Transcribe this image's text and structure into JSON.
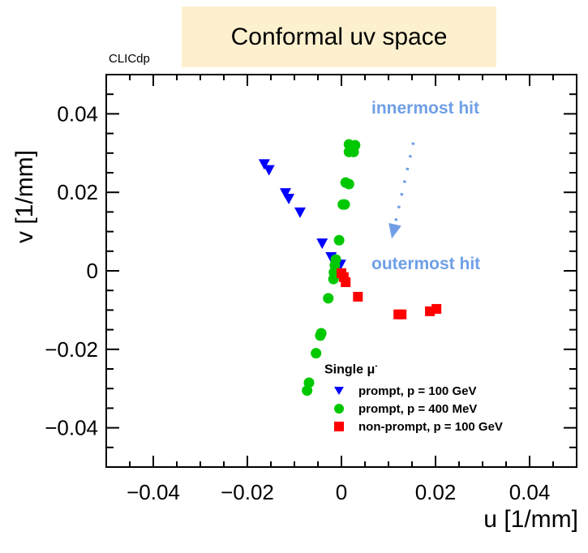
{
  "title": "Conformal uv space",
  "collaboration_label": "CLICdp",
  "annotations": {
    "innermost": "innermost hit",
    "outermost": "outermost hit",
    "color": "#6f9fe6"
  },
  "legend": {
    "header": "Single μ",
    "header_sup": "-",
    "entries": [
      {
        "label": "prompt, p = 100 GeV",
        "marker": "triangle-down",
        "color": "#0000ff"
      },
      {
        "label": "prompt, p = 400 MeV",
        "marker": "circle",
        "color": "#00c800"
      },
      {
        "label": "non-prompt, p = 100 GeV",
        "marker": "square",
        "color": "#ff0000"
      }
    ]
  },
  "chart_data": {
    "type": "scatter",
    "title": "Conformal uv space",
    "xlabel": "u [1/mm]",
    "ylabel": "v [1/mm]",
    "xlim": [
      -0.05,
      0.05
    ],
    "ylim": [
      -0.05,
      0.05
    ],
    "xticks": [
      -0.04,
      -0.02,
      0,
      0.02,
      0.04
    ],
    "xtick_labels": [
      "−0.04",
      "−0.02",
      "0",
      "0.02",
      "0.04"
    ],
    "yticks": [
      -0.04,
      -0.02,
      0,
      0.02,
      0.04
    ],
    "ytick_labels": [
      "−0.04",
      "−0.02",
      "0",
      "0.02",
      "0.04"
    ],
    "minor_tick_step": 0.005,
    "grid": false,
    "legend_position": "bottom-right",
    "series": [
      {
        "name": "prompt, p = 100 GeV",
        "marker": "triangle-down",
        "color": "#0000ff",
        "points": [
          [
            -0.0164,
            0.0272
          ],
          [
            -0.0154,
            0.0257
          ],
          [
            -0.0119,
            0.0198
          ],
          [
            -0.0112,
            0.0184
          ],
          [
            -0.0088,
            0.0149
          ],
          [
            -0.0041,
            0.007
          ],
          [
            -0.0022,
            0.0035
          ],
          [
            -0.0002,
            0.0016
          ]
        ]
      },
      {
        "name": "prompt, p = 400 MeV",
        "marker": "circle",
        "color": "#00c800",
        "points": [
          [
            0.0016,
            0.0322
          ],
          [
            0.0029,
            0.032
          ],
          [
            0.0016,
            0.0303
          ],
          [
            0.0026,
            0.0303
          ],
          [
            0.0009,
            0.0225
          ],
          [
            0.0016,
            0.0221
          ],
          [
            0.0007,
            0.0169
          ],
          [
            0.0003,
            0.0169
          ],
          [
            -0.0005,
            0.0078
          ],
          [
            -0.0012,
            0.0029
          ],
          [
            -0.0014,
            0.0014
          ],
          [
            -0.0016,
            -0.0004
          ],
          [
            -0.0017,
            -0.0021
          ],
          [
            -0.0028,
            -0.007
          ],
          [
            -0.0043,
            -0.0159
          ],
          [
            -0.0045,
            -0.0165
          ],
          [
            -0.0054,
            -0.021
          ],
          [
            -0.0069,
            -0.0285
          ],
          [
            -0.0073,
            -0.0305
          ]
        ]
      },
      {
        "name": "non-prompt, p = 100 GeV",
        "marker": "square",
        "color": "#ff0000",
        "points": [
          [
            0.0,
            -0.0006
          ],
          [
            0.0005,
            -0.0016
          ],
          [
            0.0009,
            -0.0029
          ],
          [
            0.0035,
            -0.0066
          ],
          [
            0.0121,
            -0.0111
          ],
          [
            0.0128,
            -0.0111
          ],
          [
            0.0188,
            -0.0103
          ],
          [
            0.0202,
            -0.0097
          ]
        ]
      }
    ],
    "arrow": {
      "from": [
        0.0153,
        0.0327
      ],
      "to": [
        0.0107,
        0.0082
      ],
      "style": "dotted",
      "color": "#6f9fe6"
    }
  }
}
